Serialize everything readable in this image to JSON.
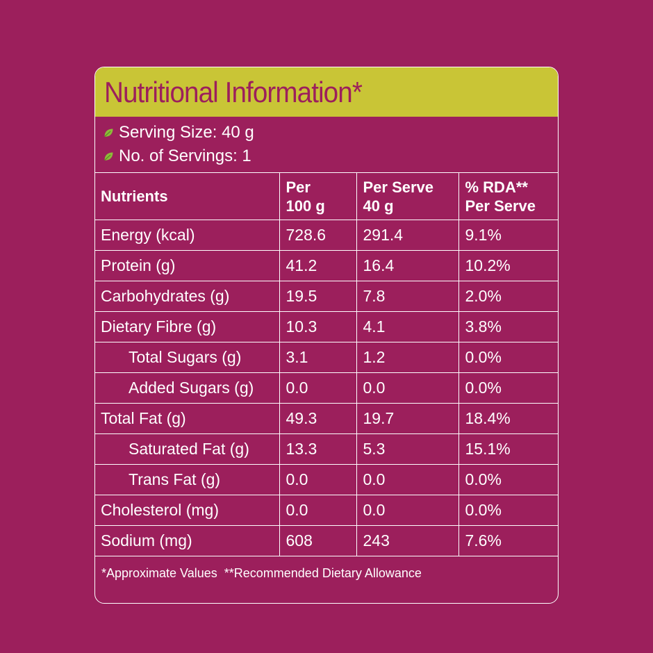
{
  "title": "Nutritional Information*",
  "serving": {
    "size": "Serving Size: 40 g",
    "count": "No. of Servings: 1"
  },
  "colors": {
    "background": "#9c1f5c",
    "title_bar": "#c9c536",
    "leaf": "#8dbb3a"
  },
  "table": {
    "headers": [
      "Nutrients",
      "Per\n100 g",
      "Per Serve\n40 g",
      "% RDA**\nPer Serve"
    ],
    "rows": [
      {
        "name": "Energy (kcal)",
        "per100": "728.6",
        "perServe": "291.4",
        "rda": "9.1%",
        "indent": false
      },
      {
        "name": "Protein (g)",
        "per100": "41.2",
        "perServe": "16.4",
        "rda": "10.2%",
        "indent": false
      },
      {
        "name": "Carbohydrates (g)",
        "per100": "19.5",
        "perServe": "7.8",
        "rda": "2.0%",
        "indent": false
      },
      {
        "name": "Dietary Fibre (g)",
        "per100": "10.3",
        "perServe": "4.1",
        "rda": "3.8%",
        "indent": false
      },
      {
        "name": "Total Sugars (g)",
        "per100": "3.1",
        "perServe": "1.2",
        "rda": "0.0%",
        "indent": true
      },
      {
        "name": "Added Sugars (g)",
        "per100": "0.0",
        "perServe": "0.0",
        "rda": "0.0%",
        "indent": true
      },
      {
        "name": "Total Fat (g)",
        "per100": "49.3",
        "perServe": "19.7",
        "rda": "18.4%",
        "indent": false
      },
      {
        "name": "Saturated Fat (g)",
        "per100": "13.3",
        "perServe": "5.3",
        "rda": "15.1%",
        "indent": true
      },
      {
        "name": "Trans Fat (g)",
        "per100": "0.0",
        "perServe": "0.0",
        "rda": "0.0%",
        "indent": true
      },
      {
        "name": "Cholesterol (mg)",
        "per100": "0.0",
        "perServe": "0.0",
        "rda": "0.0%",
        "indent": false
      },
      {
        "name": "Sodium (mg)",
        "per100": "608",
        "perServe": "243",
        "rda": "7.6%",
        "indent": false
      }
    ]
  },
  "footnote": "*Approximate Values  **Recommended Dietary Allowance"
}
